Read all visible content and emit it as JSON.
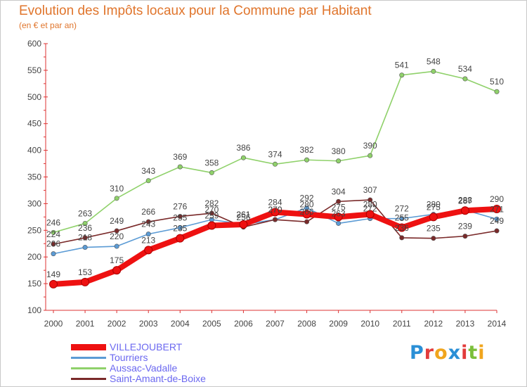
{
  "header": {
    "title": "Evolution des Impôts locaux pour la Commune par Habitant",
    "subtitle": "(en € et par an)"
  },
  "logo": {
    "letters": [
      "P",
      "r",
      "o",
      "x",
      "i",
      "t",
      "i"
    ],
    "colors": [
      "#2a8fd6",
      "#e23b3b",
      "#f0a51d",
      "#2a8fd6",
      "#e23b3b",
      "#7bbf3a",
      "#f0a51d"
    ]
  },
  "chart_data": {
    "type": "line",
    "title": "Evolution des Impôts locaux pour la Commune par Habitant",
    "subtitle": "(en € et par an)",
    "xlabel": "",
    "ylabel": "",
    "x": [
      "2000",
      "2001",
      "2002",
      "2003",
      "2004",
      "2005",
      "2006",
      "2007",
      "2008",
      "2009",
      "2010",
      "2011",
      "2012",
      "2013",
      "2014"
    ],
    "ylim": [
      100,
      600
    ],
    "yticks": [
      100,
      150,
      200,
      250,
      300,
      350,
      400,
      450,
      500,
      550,
      600
    ],
    "grid": "none",
    "legend_position": "bottom-left",
    "series": [
      {
        "name": "VILLEJOUBERT",
        "color": "#ee1111",
        "style": "thick",
        "values": [
          149,
          153,
          175,
          213,
          235,
          259,
          261,
          284,
          280,
          275,
          280,
          255,
          275,
          287,
          290
        ]
      },
      {
        "name": "Tourriers",
        "color": "#5b9bd5",
        "style": "thin",
        "values": [
          206,
          218,
          220,
          243,
          255,
          270,
          261,
          270,
          292,
          263,
          272,
          272,
          280,
          288,
          271
        ]
      },
      {
        "name": "Aussac-Vadalle",
        "color": "#8fd16a",
        "style": "thin",
        "values": [
          246,
          263,
          310,
          343,
          369,
          358,
          386,
          374,
          382,
          380,
          390,
          541,
          548,
          534,
          510
        ]
      },
      {
        "name": "Saint-Amant-de-Boixe",
        "color": "#7a2a2a",
        "style": "thin",
        "values": [
          224,
          236,
          249,
          266,
          276,
          282,
          256,
          270,
          266,
          304,
          307,
          236,
          235,
          239,
          249
        ]
      }
    ]
  }
}
